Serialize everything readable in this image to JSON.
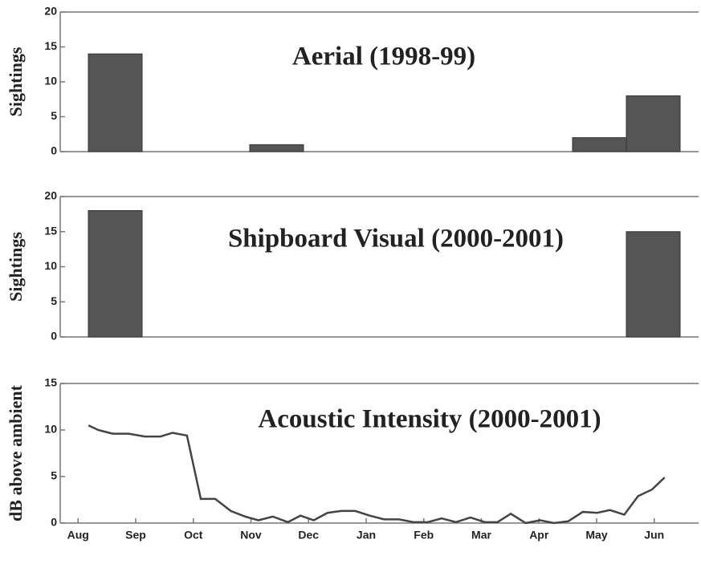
{
  "chart_data": [
    {
      "type": "bar",
      "title": "Aerial (1998-99)",
      "y_label": "Sightings",
      "categories": [
        null,
        null,
        null,
        null,
        null,
        null,
        null,
        null,
        null,
        null,
        null
      ],
      "values": [
        14,
        0,
        0,
        1,
        0,
        0,
        0,
        0,
        0,
        2,
        8
      ],
      "color": "#555555",
      "ylim": [
        0,
        20
      ],
      "yticks": [
        0,
        5,
        10,
        15,
        20
      ]
    },
    {
      "type": "bar",
      "title": "Shipboard Visual (2000-2001)",
      "y_label": "Sightings",
      "categories": [
        null,
        null,
        null,
        null,
        null,
        null,
        null,
        null,
        null,
        null,
        null
      ],
      "values": [
        18,
        0,
        0,
        0,
        0,
        0,
        0,
        0,
        0,
        0,
        15
      ],
      "color": "#555555",
      "ylim": [
        0,
        20
      ],
      "yticks": [
        0,
        5,
        10,
        15,
        20
      ]
    },
    {
      "type": "line",
      "title": "Acoustic Intensity (2000-2001)",
      "y_label": "dB above ambient",
      "x": [
        0.18,
        0.35,
        0.6,
        0.88,
        1.16,
        1.43,
        1.64,
        1.89,
        2.13,
        2.38,
        2.65,
        2.9,
        3.13,
        3.38,
        3.64,
        3.86,
        4.09,
        4.33,
        4.57,
        4.81,
        5.06,
        5.31,
        5.57,
        5.82,
        6.07,
        6.31,
        6.56,
        6.81,
        7.06,
        7.28,
        7.51,
        7.77,
        8.02,
        8.26,
        8.51,
        8.76,
        9.01,
        9.23,
        9.48,
        9.72,
        9.96,
        10.18
      ],
      "values": [
        10.5,
        10,
        9.6,
        9.6,
        9.3,
        9.3,
        9.7,
        9.4,
        2.6,
        2.6,
        1.3,
        0.7,
        0.3,
        0.7,
        0.1,
        0.8,
        0.3,
        1.1,
        1.3,
        1.3,
        0.8,
        0.4,
        0.4,
        0.1,
        0.1,
        0.5,
        0.1,
        0.6,
        0.1,
        0.1,
        1.0,
        0,
        0.3,
        0,
        0.2,
        1.2,
        1.1,
        1.4,
        0.9,
        2.9,
        3.6,
        4.9
      ],
      "color": "#444444",
      "xlim": [
        -0.31,
        10.77
      ],
      "xticks": [
        {
          "value": 0,
          "label": "Aug"
        },
        {
          "value": 1,
          "label": "Sep"
        },
        {
          "value": 2,
          "label": "Oct"
        },
        {
          "value": 3,
          "label": "Nov"
        },
        {
          "value": 4,
          "label": "Dec"
        },
        {
          "value": 5,
          "label": "Jan"
        },
        {
          "value": 6,
          "label": "Feb"
        },
        {
          "value": 7,
          "label": "Mar"
        },
        {
          "value": 8,
          "label": "Apr"
        },
        {
          "value": 9,
          "label": "May"
        },
        {
          "value": 10,
          "label": "Jun"
        }
      ],
      "ylim": [
        0,
        15
      ],
      "yticks": [
        0,
        5,
        10,
        15
      ]
    }
  ]
}
